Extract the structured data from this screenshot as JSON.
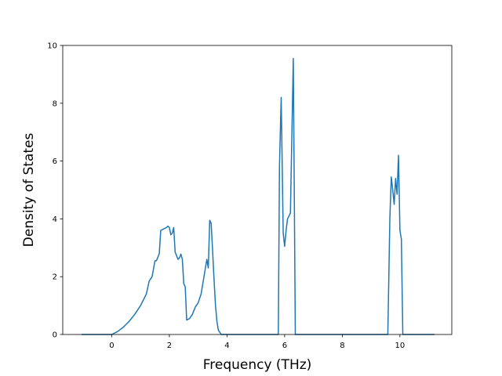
{
  "chart_data": {
    "type": "line",
    "title": "",
    "xlabel": "Frequency (THz)",
    "ylabel": "Density of States",
    "xlim": [
      -1.7,
      11.8
    ],
    "ylim": [
      0,
      10
    ],
    "xticks": [
      0,
      2,
      4,
      6,
      8,
      10
    ],
    "yticks": [
      0,
      2,
      4,
      6,
      8,
      10
    ],
    "grid": false,
    "line_color": "#1f77b4",
    "series": [
      {
        "x": [
          -1.05,
          0.0,
          0.2,
          0.4,
          0.6,
          0.8,
          1.0,
          1.2,
          1.3,
          1.4,
          1.5,
          1.55,
          1.65,
          1.7,
          1.8,
          1.9,
          1.95,
          2.0,
          2.05,
          2.1,
          2.15,
          2.2,
          2.3,
          2.35,
          2.4,
          2.45,
          2.5,
          2.55,
          2.6,
          2.7,
          2.8,
          2.9,
          3.0,
          3.1,
          3.2,
          3.3,
          3.35,
          3.4,
          3.45,
          3.5,
          3.55,
          3.6,
          3.65,
          3.7,
          3.8,
          3.9,
          4.0,
          4.2,
          5.78,
          5.82,
          5.88,
          5.95,
          6.0,
          6.05,
          6.1,
          6.2,
          6.3,
          6.37,
          6.42,
          9.58,
          9.65,
          9.7,
          9.75,
          9.8,
          9.85,
          9.9,
          9.95,
          10.0,
          10.05,
          10.1,
          10.15,
          10.2,
          11.2
        ],
        "y": [
          0.0,
          0.0,
          0.1,
          0.25,
          0.45,
          0.7,
          1.0,
          1.4,
          1.85,
          2.0,
          2.55,
          2.55,
          2.8,
          3.6,
          3.65,
          3.7,
          3.75,
          3.7,
          3.45,
          3.5,
          3.7,
          2.85,
          2.6,
          2.65,
          2.78,
          2.6,
          1.75,
          1.65,
          0.5,
          0.55,
          0.7,
          0.95,
          1.1,
          1.4,
          2.0,
          2.6,
          2.3,
          3.95,
          3.85,
          2.9,
          1.9,
          1.0,
          0.45,
          0.15,
          0.0,
          0.0,
          0.0,
          0.0,
          0.0,
          5.8,
          8.2,
          3.5,
          3.05,
          3.6,
          4.0,
          4.2,
          9.55,
          0.0,
          0.0,
          0.0,
          4.0,
          5.45,
          5.0,
          4.5,
          5.4,
          4.85,
          6.2,
          3.6,
          3.3,
          0.0,
          0.0,
          0.0,
          0.0
        ]
      }
    ]
  }
}
